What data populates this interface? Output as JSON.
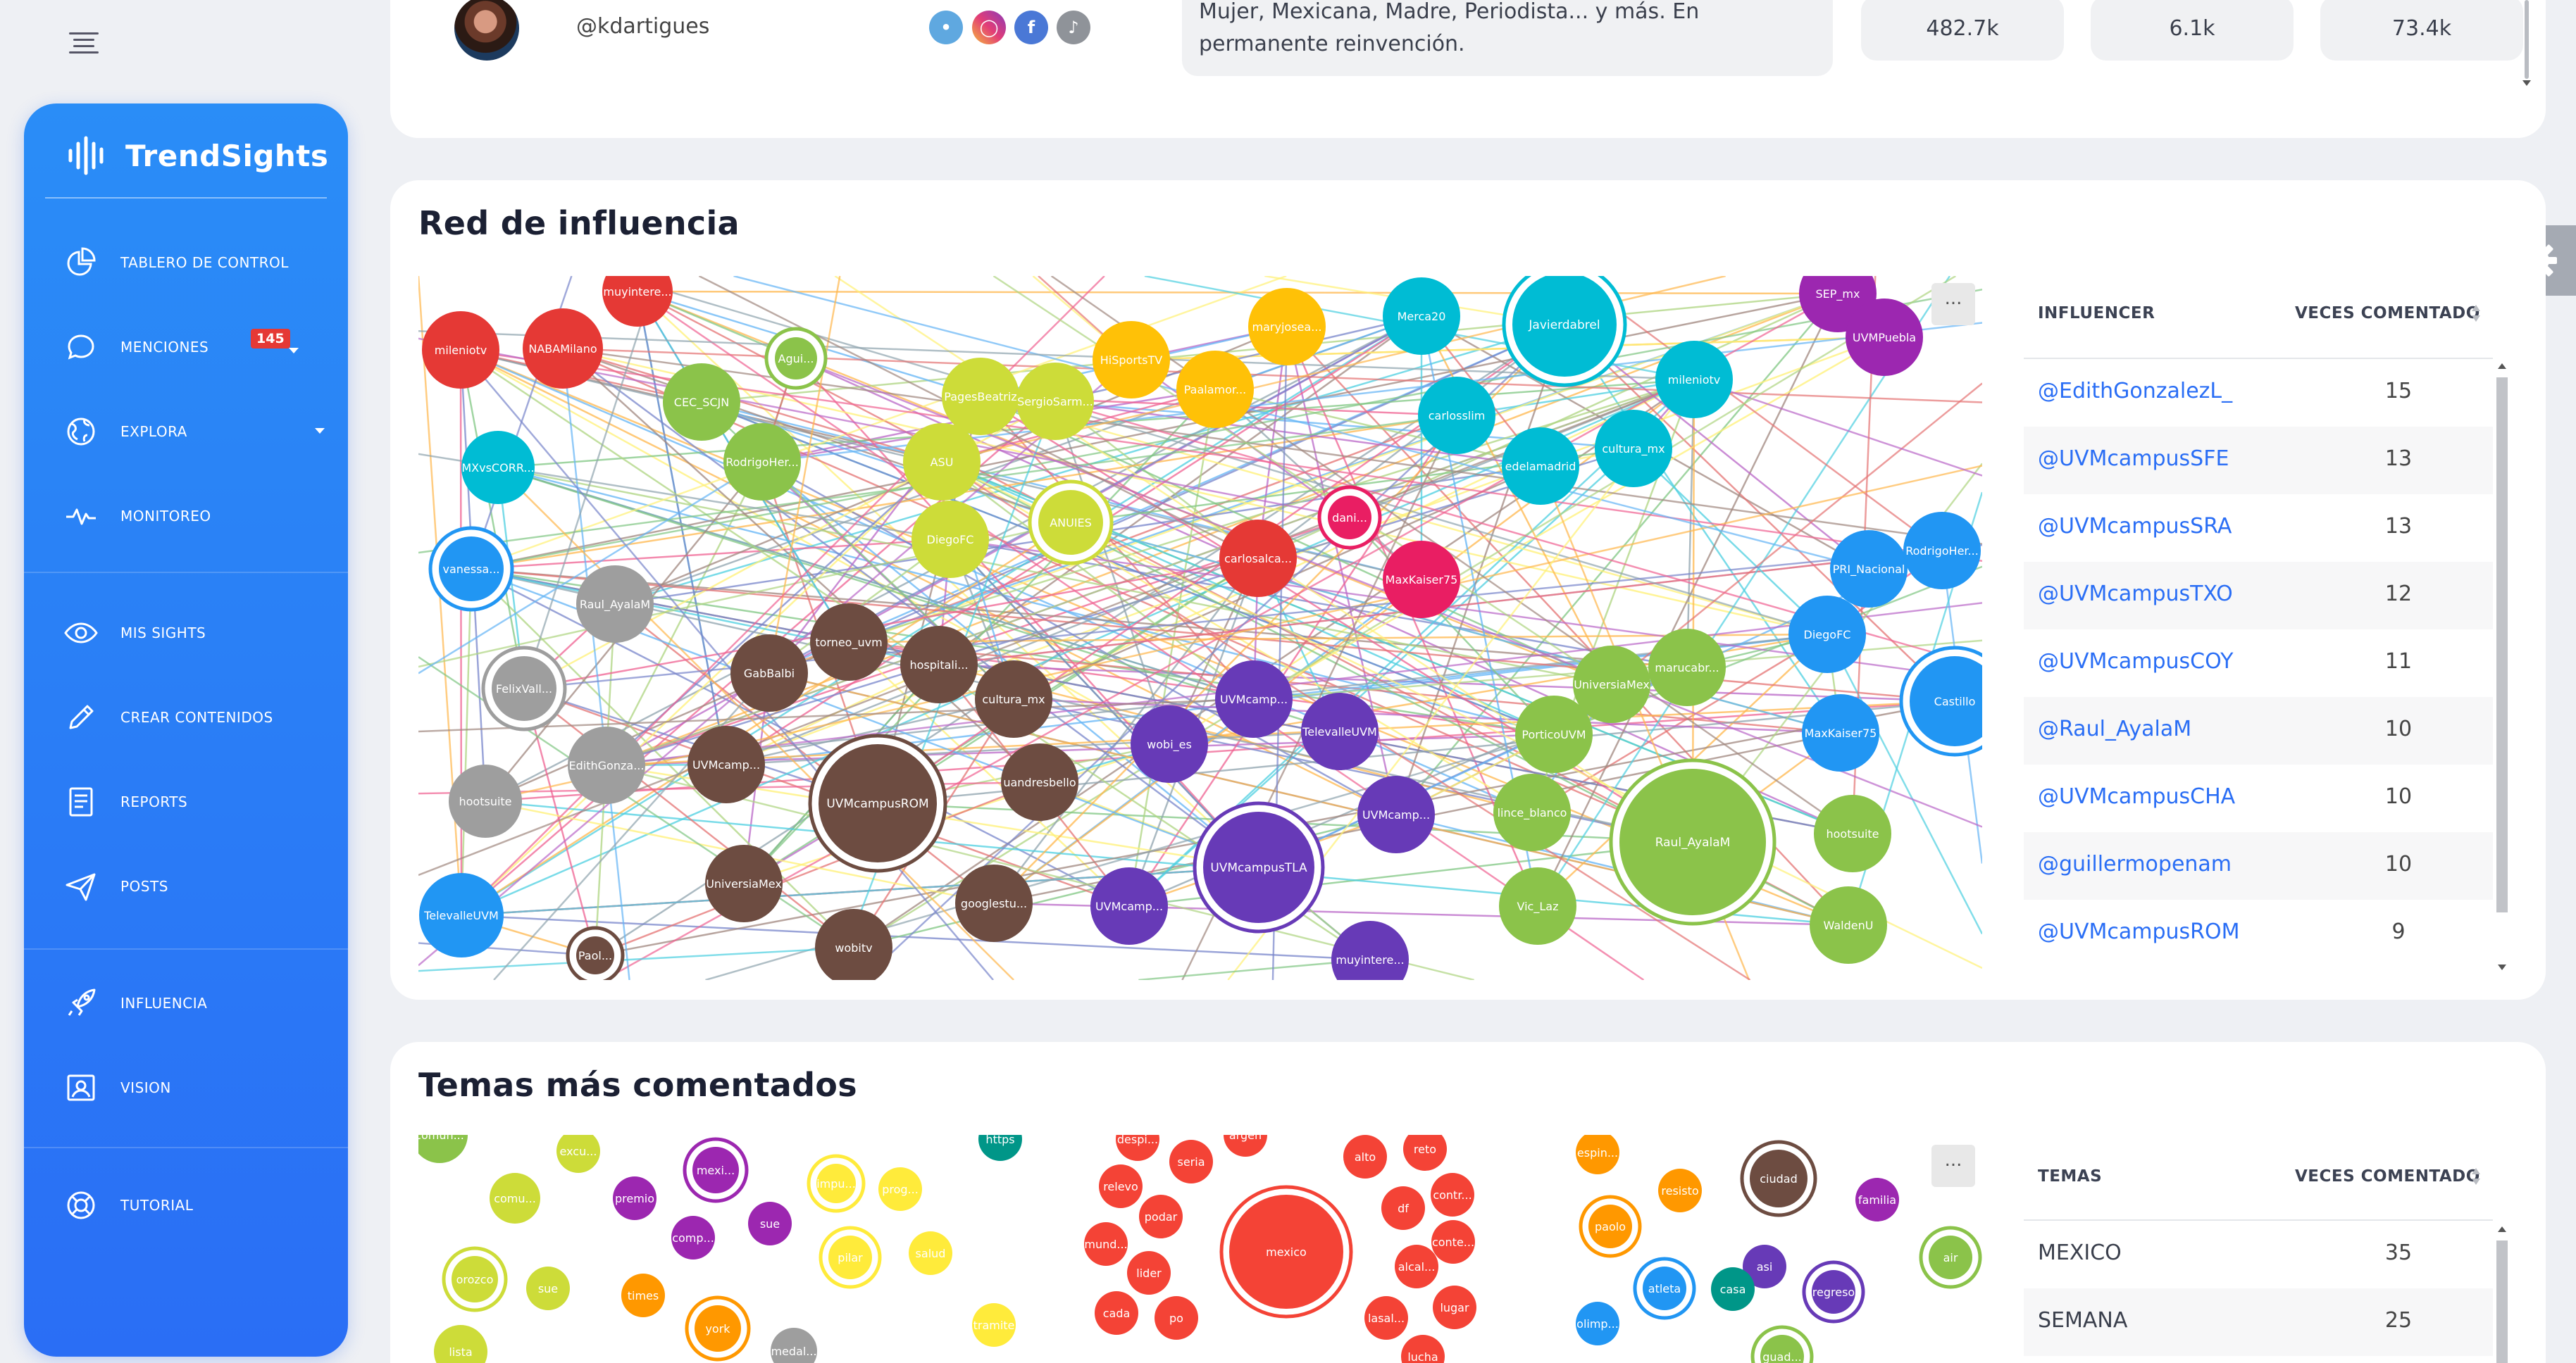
{
  "sidebar": {
    "brand": "TrendSights",
    "items": [
      {
        "label": "TABLERO DE CONTROL",
        "icon": "pie-chart-icon"
      },
      {
        "label": "MENCIONES",
        "icon": "chat-bubble-icon",
        "badge": "145"
      },
      {
        "label": "EXPLORA",
        "icon": "globe-icon"
      },
      {
        "label": "MONITOREO",
        "icon": "pulse-icon"
      },
      {
        "label": "MIS SIGHTS",
        "icon": "eye-icon"
      },
      {
        "label": "CREAR CONTENIDOS",
        "icon": "pencil-icon"
      },
      {
        "label": "REPORTS",
        "icon": "report-icon"
      },
      {
        "label": "POSTS",
        "icon": "send-icon"
      },
      {
        "label": "INFLUENCIA",
        "icon": "rocket-icon"
      },
      {
        "label": "VISION",
        "icon": "image-icon"
      },
      {
        "label": "TUTORIAL",
        "icon": "lifebuoy-icon"
      }
    ]
  },
  "profile_row": {
    "handle": "@kdartigues",
    "bio": "Mujer, Mexicana, Madre, Periodista... y más. En permanente reinvención.",
    "metrics": [
      "482.7k",
      "6.1k",
      "73.4k"
    ],
    "socials": [
      "twitter-icon",
      "instagram-icon",
      "facebook-icon",
      "tiktok-icon"
    ]
  },
  "network_card": {
    "title": "Red de influencia",
    "menu": "...",
    "table": {
      "headers": [
        "INFLUENCER",
        "VECES COMENTADO"
      ],
      "rows": [
        {
          "name": "@EdithGonzalezL_",
          "count": "15"
        },
        {
          "name": "@UVMcampusSFE",
          "count": "13"
        },
        {
          "name": "@UVMcampusSRA",
          "count": "13"
        },
        {
          "name": "@UVMcampusTXO",
          "count": "12"
        },
        {
          "name": "@UVMcampusCOY",
          "count": "11"
        },
        {
          "name": "@Raul_AyalaM",
          "count": "10"
        },
        {
          "name": "@UVMcampusCHA",
          "count": "10"
        },
        {
          "name": "@guillermopenam",
          "count": "10"
        },
        {
          "name": "@UVMcampusROM",
          "count": "9"
        }
      ]
    },
    "nodes": [
      "muyintere...",
      "mileniotv",
      "NABAMilano",
      "Agui...",
      "CEC_SCJN",
      "RodrigoHer...",
      "MXvsCORR...",
      "vanessa...",
      "Raul_AyalaM",
      "FelixVall...",
      "EdithGonza...",
      "hootsuite",
      "TelevalleUVM",
      "Paol...",
      "GabBalbi",
      "torneo_uvm",
      "hospitali...",
      "cultura_mx",
      "UVMcamp...",
      "UVMcampusROM",
      "UniversiaMex",
      "wobitv",
      "uandresbello",
      "googlestu...",
      "PagesBeatriz",
      "SergioSarm...",
      "ASU",
      "DiegoFC",
      "ANUIES",
      "HiSportsTV",
      "maryjosea...",
      "Paalamor...",
      "Merca20",
      "Javierdabrel",
      "carlosslim",
      "edelamadrid",
      "cultura_mx",
      "mileniotv",
      "carlosalca...",
      "dani...",
      "MaxKaiser75",
      "wobi_es",
      "UVMcamp...",
      "TelevalleUVM",
      "UVMcampusTLA",
      "UVMcamp...",
      "UVMcamp...",
      "muyintere...",
      "PorticoUVM",
      "UniversiaMex",
      "marucabr...",
      "lince_blanco",
      "Raul_AyalaM",
      "Vic_Laz",
      "hootsuite",
      "WaldenU",
      "SEP_mx",
      "UVMPuebla",
      "PRI_Nacional",
      "RodrigoHer...",
      "DiegoFC",
      "MaxKaiser75",
      "Castillo"
    ]
  },
  "topics_card": {
    "title": "Temas más comentados",
    "menu": "...",
    "table": {
      "headers": [
        "TEMAS",
        "VECES COMENTADO"
      ],
      "rows": [
        {
          "name": "MEXICO",
          "count": "35"
        },
        {
          "name": "SEMANA",
          "count": "25"
        }
      ]
    },
    "bubbles": [
      "comun...",
      "excu...",
      "comu...",
      "premio",
      "mexi...",
      "comp...",
      "sue",
      "impu...",
      "prog...",
      "pilar",
      "salud",
      "https",
      "orozco",
      "sue",
      "times",
      "york",
      "tramite",
      "lista",
      "medal...",
      "despi...",
      "argen",
      "alto",
      "reto",
      "relevo",
      "seria",
      "podar",
      "df",
      "contr...",
      "mexico",
      "mund...",
      "lider",
      "alcal...",
      "conte...",
      "cada",
      "po",
      "lasal...",
      "lugar",
      "lucha",
      "espin...",
      "resisto",
      "ciudad",
      "familia",
      "paolo",
      "asi",
      "air",
      "atleta",
      "casa",
      "regreso",
      "olimp...",
      "guad..."
    ]
  }
}
